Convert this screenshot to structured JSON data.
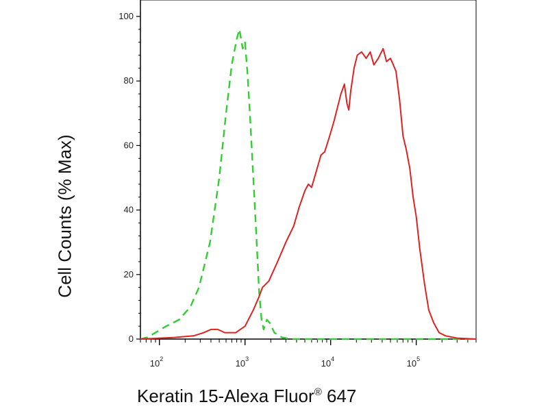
{
  "chart_data": {
    "type": "line",
    "title": "",
    "xlabel_main": "Keratin 15-Alexa Fluor",
    "xlabel_mark": "®",
    "xlabel_tail": " 647",
    "ylabel": "Cell Counts (% Max)",
    "x_scale": "log",
    "xlim": [
      60,
      500000
    ],
    "ylim": [
      0,
      100
    ],
    "grid": false,
    "x_ticks": [
      {
        "base": "10",
        "exp": "2"
      },
      {
        "base": "10",
        "exp": "3"
      },
      {
        "base": "10",
        "exp": "4"
      },
      {
        "base": "10",
        "exp": "5"
      }
    ],
    "y_ticks": [
      "0",
      "20",
      "40",
      "60",
      "80",
      "100"
    ],
    "series": [
      {
        "color": "#33cc33",
        "style": "dashed",
        "points": [
          [
            60,
            0
          ],
          [
            72,
            0.5
          ],
          [
            90,
            2
          ],
          [
            120,
            4
          ],
          [
            170,
            6
          ],
          [
            230,
            10
          ],
          [
            290,
            16
          ],
          [
            390,
            30
          ],
          [
            500,
            50
          ],
          [
            600,
            70
          ],
          [
            700,
            85
          ],
          [
            800,
            93
          ],
          [
            860,
            96
          ],
          [
            940,
            90
          ],
          [
            1000,
            92
          ],
          [
            1070,
            82
          ],
          [
            1150,
            68
          ],
          [
            1250,
            50
          ],
          [
            1350,
            33
          ],
          [
            1460,
            15
          ],
          [
            1560,
            6
          ],
          [
            1650,
            3
          ],
          [
            1800,
            6
          ],
          [
            1950,
            5
          ],
          [
            2200,
            2
          ],
          [
            2700,
            0.5
          ],
          [
            3500,
            0
          ],
          [
            500000,
            0
          ]
        ]
      },
      {
        "color": "#dd2222",
        "style": "solid",
        "points": [
          [
            60,
            0
          ],
          [
            150,
            0.5
          ],
          [
            250,
            1
          ],
          [
            330,
            2
          ],
          [
            400,
            3
          ],
          [
            480,
            3
          ],
          [
            580,
            2
          ],
          [
            780,
            2
          ],
          [
            1000,
            4
          ],
          [
            1250,
            9
          ],
          [
            1450,
            13
          ],
          [
            1600,
            16
          ],
          [
            1900,
            18
          ],
          [
            2400,
            24
          ],
          [
            3000,
            30
          ],
          [
            3700,
            35
          ],
          [
            4300,
            41
          ],
          [
            5000,
            46
          ],
          [
            5500,
            48
          ],
          [
            6000,
            47
          ],
          [
            6800,
            52
          ],
          [
            7700,
            57
          ],
          [
            8500,
            58
          ],
          [
            9500,
            62
          ],
          [
            10800,
            67
          ],
          [
            11800,
            71
          ],
          [
            13200,
            76
          ],
          [
            14500,
            79
          ],
          [
            15500,
            73
          ],
          [
            16300,
            71
          ],
          [
            17200,
            77
          ],
          [
            18800,
            84
          ],
          [
            20500,
            88
          ],
          [
            23000,
            89
          ],
          [
            26000,
            87
          ],
          [
            29000,
            89
          ],
          [
            32000,
            85
          ],
          [
            36000,
            87
          ],
          [
            41000,
            90
          ],
          [
            45000,
            86
          ],
          [
            50000,
            87
          ],
          [
            54000,
            85
          ],
          [
            58000,
            83
          ],
          [
            64000,
            74
          ],
          [
            70000,
            63
          ],
          [
            76000,
            59
          ],
          [
            84000,
            53
          ],
          [
            92000,
            44
          ],
          [
            100000,
            38
          ],
          [
            110000,
            28
          ],
          [
            125000,
            17
          ],
          [
            140000,
            9
          ],
          [
            160000,
            5
          ],
          [
            185000,
            2
          ],
          [
            220000,
            1
          ],
          [
            300000,
            0.3
          ],
          [
            500000,
            0
          ]
        ]
      }
    ]
  }
}
